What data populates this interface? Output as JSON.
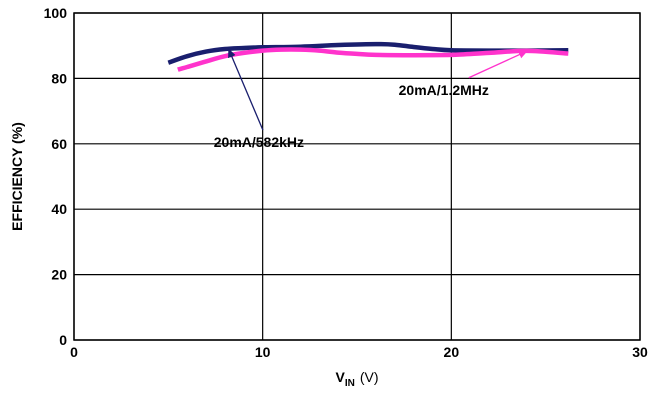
{
  "chart_data": {
    "type": "line",
    "xlabel": "V",
    "xlabel_sub": "IN",
    "xlabel_unit": "(V)",
    "ylabel": "EFFICIENCY (%)",
    "xlim": [
      0,
      30
    ],
    "ylim": [
      0,
      100
    ],
    "x_ticks": [
      "0",
      "10",
      "20",
      "30"
    ],
    "y_ticks": [
      "0",
      "20",
      "40",
      "60",
      "80",
      "100"
    ],
    "grid": true,
    "series": [
      {
        "name": "20mA/582kHz",
        "color": "#1a1f6e",
        "x": [
          5,
          6,
          7,
          8,
          9,
          10,
          12,
          14,
          16,
          17,
          18,
          19,
          20,
          22,
          24,
          26.2
        ],
        "y": [
          84.8,
          86.8,
          88.2,
          89.0,
          89.3,
          89.5,
          89.7,
          90.2,
          90.5,
          90.3,
          89.6,
          89.0,
          88.6,
          88.5,
          88.5,
          88.6
        ]
      },
      {
        "name": "20mA/1.2MHz",
        "color": "#ff33cc",
        "x": [
          5.5,
          6,
          7,
          8,
          9,
          10,
          11,
          12,
          13,
          14,
          15,
          16,
          18,
          20,
          22,
          24,
          26.2
        ],
        "y": [
          82.7,
          83.5,
          85.2,
          86.8,
          87.8,
          88.5,
          88.8,
          88.8,
          88.5,
          87.9,
          87.5,
          87.2,
          87.1,
          87.2,
          87.8,
          88.4,
          87.6
        ]
      }
    ],
    "annotations": [
      {
        "text": "20mA/582kHz",
        "series": 0,
        "target": [
          8.2,
          88.9
        ],
        "text_pos": [
          9.8,
          59.0
        ],
        "color": "#1a1f6e"
      },
      {
        "text": "20mA/1.2MHz",
        "series": 1,
        "target": [
          24.0,
          88.3
        ],
        "text_pos": [
          19.6,
          75.0
        ],
        "color": "#ff33cc"
      }
    ]
  }
}
